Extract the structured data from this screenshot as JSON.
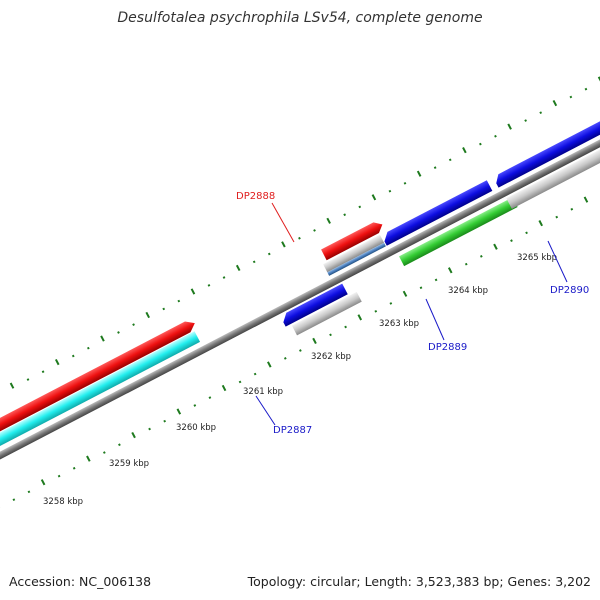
{
  "title": "Desulfotalea psychrophila LSv54, complete genome",
  "footer": {
    "accession": "Accession: NC_006138",
    "summary": "Topology: circular; Length: 3,523,383 bp; Genes: 3,202"
  },
  "scale": {
    "ticks": [
      {
        "label": "3258 kbp"
      },
      {
        "label": "3259 kbp"
      },
      {
        "label": "3260 kbp"
      },
      {
        "label": "3261 kbp"
      },
      {
        "label": "3262 kbp"
      },
      {
        "label": "3263 kbp"
      },
      {
        "label": "3264 kbp"
      },
      {
        "label": "3265 kbp"
      }
    ]
  },
  "genes": [
    {
      "label": "DP2887",
      "label_color": "#1a1ac8"
    },
    {
      "label": "DP2888",
      "label_color": "#e01e1e"
    },
    {
      "label": "DP2889",
      "label_color": "#1a1ac8"
    },
    {
      "label": "DP2890",
      "label_color": "#1a1ac8"
    }
  ],
  "colors": {
    "backbone": "#777777",
    "cds_blue": "#1010e0",
    "cds_gray": "#c8c8c8",
    "cds_red": "#ee1010",
    "cds_green": "#33cc33",
    "cds_cyan": "#22eeee",
    "cds_steel": "#4a7fc0",
    "tick_green": "#1e7a1e"
  }
}
